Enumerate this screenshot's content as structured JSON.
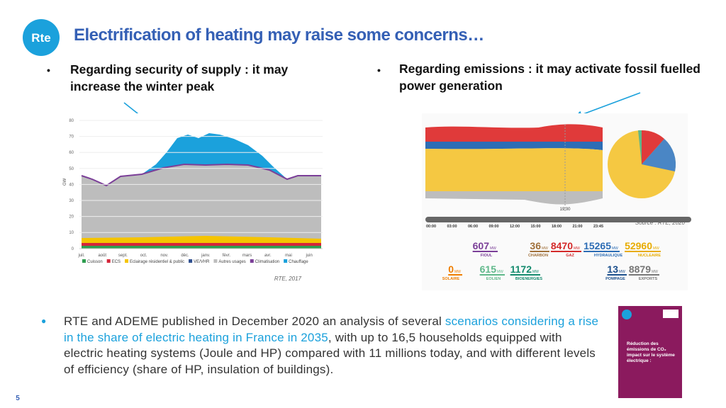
{
  "header": {
    "logo": "Rte",
    "title": "Electrification of heating may raise some concerns…"
  },
  "bullets": [
    "Regarding security of supply : it may increase the winter peak",
    "Regarding emissions : it may activate fossil fuelled power generation"
  ],
  "left_figure": {
    "y_unit": "GW",
    "yticks": [
      "80",
      "70",
      "60",
      "50",
      "40",
      "30",
      "20",
      "10",
      "0"
    ],
    "months": [
      "juil.",
      "août",
      "sept.",
      "oct.",
      "nov.",
      "déc.",
      "janv.",
      "févr.",
      "mars",
      "avr.",
      "mai",
      "juin"
    ],
    "legend": [
      {
        "name": "Cuisson",
        "color": "#2e9e4f"
      },
      {
        "name": "ECS",
        "color": "#d4263a"
      },
      {
        "name": "Eclairage résidentiel & public",
        "color": "#f5c400"
      },
      {
        "name": "VE/VHR",
        "color": "#2f4f8f"
      },
      {
        "name": "Autres usages",
        "color": "#bdbdbd"
      },
      {
        "name": "Climatisation",
        "color": "#7b3f98"
      },
      {
        "name": "Chauffage",
        "color": "#1ba1dc"
      }
    ],
    "caption": "RTE, 2017"
  },
  "right_figure": {
    "times": [
      "00:00",
      "03:00",
      "06:00",
      "09:00",
      "12:00",
      "15:00",
      "18:00",
      "21:00",
      "23:45"
    ],
    "marker_time": "19:00",
    "source": "Source : RTE, 2020",
    "production": [
      {
        "value": "607",
        "unit": "MW",
        "label": "FIOUL",
        "color": "#7b3f98"
      },
      {
        "value": "36",
        "unit": "MW",
        "label": "CHARBON",
        "color": "#a0703a"
      },
      {
        "value": "8470",
        "unit": "MW",
        "label": "GAZ",
        "color": "#d42a2a"
      },
      {
        "value": "15265",
        "unit": "MW",
        "label": "HYDRAULIQUE",
        "color": "#2d6db5"
      },
      {
        "value": "52960",
        "unit": "MW",
        "label": "NUCLEAIRE",
        "color": "#e8ac00"
      },
      {
        "value": "0",
        "unit": "MW",
        "label": "SOLAIRE",
        "color": "#ef7d00"
      },
      {
        "value": "615",
        "unit": "MW",
        "label": "EOLIEN",
        "color": "#5fb88a"
      },
      {
        "value": "1172",
        "unit": "MW",
        "label": "BIOENERGIES",
        "color": "#138a6d"
      },
      {
        "value": "13",
        "unit": "MW",
        "label": "POMPAGE",
        "color": "#1b4f8c"
      },
      {
        "value": "8879",
        "unit": "MW",
        "label": "EXPORTS",
        "color": "#777777"
      }
    ]
  },
  "body": {
    "text_before": "RTE and ADEME published in December 2020 an analysis of several ",
    "highlight": "scenarios considering a rise in the share of electric heating in France in 2035",
    "text_after": ", with up to 16,5 households equipped with electric heating systems (Joule and HP) compared with 11 millions today, and with different levels of efficiency (share of HP, insulation of buildings)."
  },
  "cover": {
    "title": "Réduction des émissions de CO₂ impact sur le système électrique :"
  },
  "page_number": "5"
}
